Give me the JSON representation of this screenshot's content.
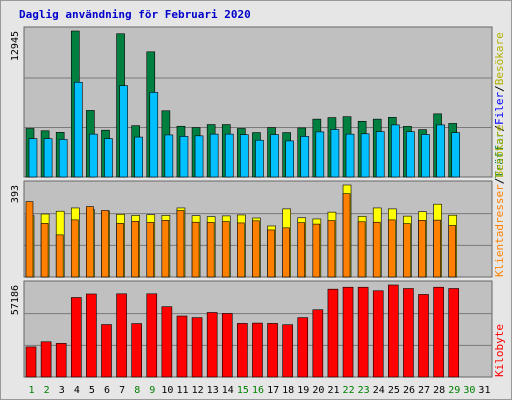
{
  "title": "Daglig användning för Februari 2020",
  "colors": {
    "traffar": "#008040",
    "filer": "#00c0ff",
    "besokare": "#ffff00",
    "klientadresser": "#ff8000",
    "kilobyte": "#ff0000",
    "plot_bg": "#c0c0c0",
    "day_weekday": "#000000",
    "day_weekend": "#008000"
  },
  "chart_data": [
    {
      "type": "bar",
      "panel": "top",
      "ymax_label": "12945",
      "ylim": [
        0,
        12945
      ],
      "categories": [
        "1",
        "2",
        "3",
        "4",
        "5",
        "6",
        "7",
        "8",
        "9",
        "10",
        "11",
        "12",
        "13",
        "14",
        "15",
        "16",
        "17",
        "18",
        "19",
        "20",
        "21",
        "22",
        "23",
        "24",
        "25",
        "26",
        "27",
        "28",
        "29",
        "30",
        "31"
      ],
      "series": [
        {
          "name": "Träffar",
          "values": [
            4300,
            4100,
            3960,
            12945,
            5900,
            4150,
            12700,
            4550,
            11100,
            5870,
            4500,
            4380,
            4650,
            4650,
            4300,
            3940,
            4380,
            3940,
            4350,
            5130,
            5270,
            5350,
            4940,
            5130,
            5290,
            4490,
            4200,
            5600,
            4750,
            0,
            0
          ]
        },
        {
          "name": "Filer",
          "values": [
            3400,
            3400,
            3330,
            8400,
            3800,
            3400,
            8100,
            3540,
            7500,
            3730,
            3600,
            3650,
            3800,
            3800,
            3750,
            3260,
            3760,
            3200,
            3600,
            4000,
            4210,
            3800,
            3830,
            4020,
            4620,
            4020,
            3770,
            4620,
            3930,
            0,
            0
          ]
        }
      ],
      "right_label": [
        "Träffar",
        "/",
        "Filer",
        "/",
        "Besökare"
      ]
    },
    {
      "type": "bar",
      "panel": "middle",
      "ymax_label": "393",
      "ylim": [
        0,
        393
      ],
      "series": [
        {
          "name": "Besökare",
          "values": [
            262,
            269,
            281,
            295,
            288,
            282,
            268,
            263,
            266,
            263,
            295,
            262,
            258,
            261,
            265,
            252,
            218,
            291,
            253,
            248,
            277,
            393,
            259,
            295,
            291,
            260,
            279,
            311,
            264,
            0,
            0
          ]
        },
        {
          "name": "Klientadresser",
          "values": [
            322,
            229,
            180,
            244,
            301,
            284,
            229,
            238,
            233,
            242,
            284,
            234,
            233,
            237,
            231,
            240,
            201,
            210,
            232,
            226,
            241,
            356,
            236,
            234,
            244,
            228,
            242,
            243,
            220,
            0,
            0
          ]
        }
      ],
      "right_label": [
        "Klientadresser",
        "/",
        "Besökare"
      ]
    },
    {
      "type": "bar",
      "panel": "bottom",
      "ymax_label": "57186",
      "ylim": [
        0,
        57186
      ],
      "series": [
        {
          "name": "Kilobyte",
          "values": [
            18700,
            21900,
            20900,
            49400,
            51600,
            32600,
            51700,
            33200,
            51700,
            43700,
            37900,
            36900,
            40100,
            39500,
            33300,
            33500,
            33300,
            32500,
            36900,
            41800,
            54600,
            55800,
            55800,
            53600,
            57186,
            55000,
            51300,
            55800,
            55000,
            0,
            0
          ]
        }
      ],
      "right_label": [
        "Kilobyte"
      ]
    }
  ],
  "day_labels": [
    "1",
    "2",
    "3",
    "4",
    "5",
    "6",
    "7",
    "8",
    "9",
    "10",
    "11",
    "12",
    "13",
    "14",
    "15",
    "16",
    "17",
    "18",
    "19",
    "20",
    "21",
    "22",
    "23",
    "24",
    "25",
    "26",
    "27",
    "28",
    "29",
    "30",
    "31"
  ],
  "weekend_days": [
    "1",
    "2",
    "8",
    "9",
    "15",
    "16",
    "22",
    "23",
    "29",
    "30"
  ]
}
